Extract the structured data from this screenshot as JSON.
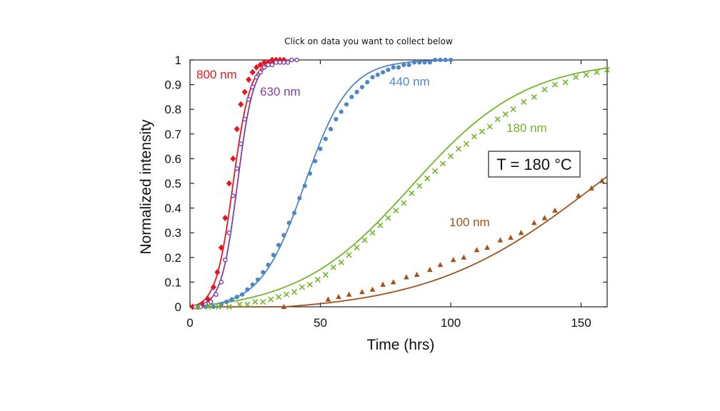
{
  "instruction": "Click on data you want to collect below",
  "chart_data": {
    "type": "scatter",
    "title": "",
    "xlabel": "Time (hrs)",
    "ylabel": "Normalized intensity",
    "xlim": [
      0,
      160
    ],
    "ylim": [
      0,
      1
    ],
    "x_ticks": [
      0,
      50,
      100,
      150
    ],
    "y_ticks": [
      0,
      0.1,
      0.2,
      0.3,
      0.4,
      0.5,
      0.6,
      0.7,
      0.8,
      0.9,
      1
    ],
    "y_tick_labels": [
      "0",
      "0.1",
      "0.2",
      "0.3",
      "0.4",
      "0.5",
      "0.6",
      "0.7",
      "0.8",
      "0.9",
      "1"
    ],
    "grid": false,
    "annotation": "T = 180 °C",
    "series": [
      {
        "name": "800 nm",
        "color": "#e8141c",
        "marker": "diamond",
        "x": [
          1,
          3,
          5,
          7,
          9,
          10.5,
          12,
          13.5,
          15,
          16.5,
          18,
          19.5,
          21,
          22.5,
          24,
          25.5,
          27,
          28.5,
          30,
          31.5,
          33,
          34.5,
          36
        ],
        "y": [
          0.0,
          0.0,
          0.01,
          0.03,
          0.08,
          0.14,
          0.24,
          0.36,
          0.5,
          0.6,
          0.72,
          0.82,
          0.87,
          0.92,
          0.95,
          0.97,
          0.98,
          0.99,
          0.99,
          1.0,
          1.0,
          1.0,
          1.0
        ]
      },
      {
        "name": "630 nm",
        "color": "#7b3fa6",
        "marker": "open-circle",
        "x": [
          2,
          4,
          6,
          8,
          10,
          12,
          13.5,
          15,
          16.5,
          18,
          19.5,
          21,
          22.5,
          24,
          25.5,
          27,
          28.5,
          30,
          31.5,
          33,
          34.5,
          36,
          37.5,
          39,
          41
        ],
        "y": [
          0.0,
          0.0,
          0.01,
          0.02,
          0.05,
          0.1,
          0.19,
          0.3,
          0.45,
          0.56,
          0.66,
          0.76,
          0.84,
          0.89,
          0.93,
          0.95,
          0.97,
          0.98,
          0.98,
          0.99,
          0.99,
          0.99,
          0.99,
          1.0,
          1.0
        ]
      },
      {
        "name": "440 nm",
        "color": "#4f86c6",
        "marker": "circle",
        "x": [
          3,
          6,
          9,
          12,
          14,
          16,
          18,
          20,
          22,
          24,
          26,
          28,
          30,
          32,
          34,
          36,
          38,
          40,
          42,
          44,
          46,
          48,
          50,
          52,
          54,
          56,
          58,
          60,
          62,
          64,
          66,
          68,
          70,
          72,
          74,
          76,
          78,
          80,
          82,
          84,
          86,
          88,
          90,
          92,
          94,
          96,
          98,
          100
        ],
        "y": [
          0.0,
          0.0,
          0.0,
          0.01,
          0.02,
          0.03,
          0.04,
          0.05,
          0.07,
          0.09,
          0.11,
          0.14,
          0.17,
          0.21,
          0.25,
          0.29,
          0.34,
          0.38,
          0.44,
          0.49,
          0.54,
          0.59,
          0.64,
          0.68,
          0.72,
          0.76,
          0.79,
          0.82,
          0.85,
          0.87,
          0.89,
          0.91,
          0.93,
          0.94,
          0.95,
          0.96,
          0.97,
          0.97,
          0.98,
          0.98,
          0.99,
          0.99,
          0.99,
          0.99,
          1.0,
          1.0,
          1.0,
          1.0
        ]
      },
      {
        "name": "180 nm",
        "color": "#72b52a",
        "marker": "x",
        "x": [
          3,
          7,
          11,
          15,
          19,
          22,
          25,
          28,
          31,
          34,
          37,
          40,
          43,
          46,
          49,
          52,
          55,
          58,
          61,
          64,
          67,
          70,
          73,
          76,
          79,
          82,
          85,
          88,
          91,
          94,
          97,
          100,
          103,
          106,
          109,
          112,
          115,
          118,
          121,
          124,
          128,
          132,
          136,
          140,
          144,
          148,
          152,
          156,
          160
        ],
        "y": [
          0.0,
          0.0,
          0.0,
          0.0,
          0.01,
          0.01,
          0.02,
          0.02,
          0.03,
          0.04,
          0.05,
          0.06,
          0.08,
          0.09,
          0.11,
          0.13,
          0.16,
          0.18,
          0.21,
          0.24,
          0.27,
          0.3,
          0.33,
          0.36,
          0.39,
          0.42,
          0.46,
          0.49,
          0.52,
          0.55,
          0.58,
          0.61,
          0.64,
          0.66,
          0.69,
          0.71,
          0.73,
          0.76,
          0.78,
          0.8,
          0.83,
          0.85,
          0.88,
          0.9,
          0.91,
          0.93,
          0.94,
          0.95,
          0.96
        ]
      },
      {
        "name": "100 nm",
        "color": "#a0521c",
        "marker": "triangle",
        "x": [
          36,
          53,
          57,
          61,
          66,
          70,
          74,
          78,
          83,
          87,
          92,
          96,
          101,
          105,
          110,
          114,
          119,
          123,
          127,
          132,
          136,
          140,
          149,
          154,
          158
        ],
        "y": [
          0.0,
          0.03,
          0.04,
          0.05,
          0.06,
          0.07,
          0.09,
          0.1,
          0.12,
          0.13,
          0.15,
          0.17,
          0.19,
          0.2,
          0.23,
          0.24,
          0.27,
          0.28,
          0.3,
          0.34,
          0.36,
          0.39,
          0.45,
          0.48,
          0.51
        ]
      }
    ],
    "fit_curves": [
      {
        "series": "800 nm",
        "color": "#e8141c",
        "midpoint": 16.5,
        "width": 3.3,
        "xmin": 0,
        "xmax": 36
      },
      {
        "series": "630 nm",
        "color": "#7b3fa6",
        "midpoint": 18.2,
        "width": 3.1,
        "xmin": 0,
        "xmax": 41
      },
      {
        "series": "440 nm",
        "color": "#4f86c6",
        "midpoint": 44.0,
        "width": 8.5,
        "xmin": 0,
        "xmax": 100
      },
      {
        "series": "180 nm",
        "color": "#72b52a",
        "midpoint": 85.0,
        "width": 22.0,
        "xmin": 0,
        "xmax": 160
      },
      {
        "series": "100 nm",
        "color": "#a0521c",
        "midpoint": 155.0,
        "width": 32.0,
        "xmin": 0,
        "xmax": 160,
        "onset": 36
      }
    ]
  }
}
